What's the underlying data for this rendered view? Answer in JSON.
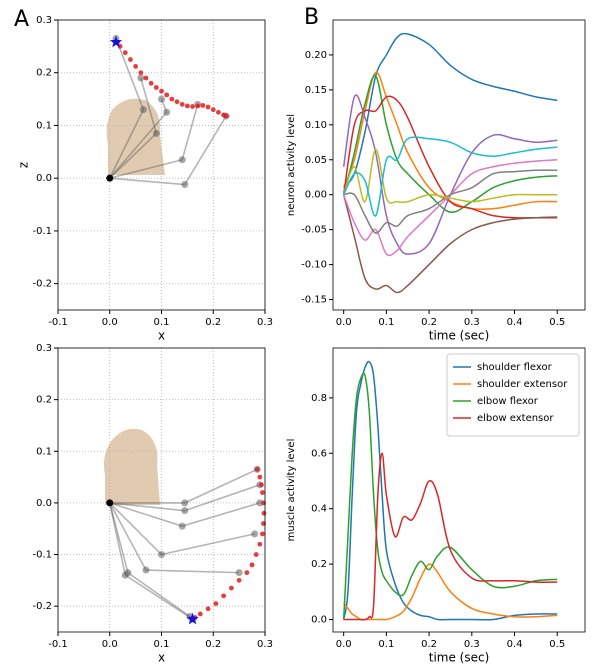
{
  "panel_labels": [
    "A",
    "B"
  ],
  "chart_data": [
    {
      "type": "arm",
      "xlabel": "x",
      "ylabel": "z",
      "grid": true,
      "xlim": [
        -0.1,
        0.3
      ],
      "ylim": [
        -0.25,
        0.3
      ],
      "xticks": [
        -0.1,
        {
          "value": 0,
          "label": "0.0"
        },
        0.1,
        0.2,
        0.3
      ],
      "yticks": [
        -0.2,
        -0.1,
        {
          "value": 0,
          "label": "0.0"
        },
        0.1,
        0.2,
        0.3
      ],
      "shoulder": [
        0,
        0
      ],
      "poses": [
        {
          "elbow": [
            0.065,
            0.13
          ],
          "hand": [
            0.012,
            0.265
          ]
        },
        {
          "elbow": [
            0.09,
            0.085
          ],
          "hand": [
            0.06,
            0.19
          ]
        },
        {
          "elbow": [
            0.14,
            0.035
          ],
          "hand": [
            0.17,
            0.14
          ]
        },
        {
          "elbow": [
            0.145,
            -0.012
          ],
          "hand": [
            0.225,
            0.118
          ]
        },
        {
          "elbow": [
            0.11,
            0.125
          ],
          "hand": [
            0.1,
            0.15
          ]
        }
      ],
      "trajectory": {
        "color": "#e41a1c",
        "x": [
          0.015,
          0.02,
          0.03,
          0.04,
          0.05,
          0.06,
          0.07,
          0.08,
          0.09,
          0.1,
          0.11,
          0.12,
          0.13,
          0.14,
          0.15,
          0.16,
          0.17,
          0.18,
          0.19,
          0.2,
          0.21,
          0.22,
          0.225
        ],
        "z": [
          0.258,
          0.25,
          0.238,
          0.225,
          0.212,
          0.2,
          0.19,
          0.18,
          0.172,
          0.165,
          0.158,
          0.15,
          0.145,
          0.14,
          0.137,
          0.136,
          0.137,
          0.138,
          0.135,
          0.13,
          0.125,
          0.12,
          0.118
        ]
      },
      "target": [
        0.012,
        0.258
      ]
    },
    {
      "type": "arm",
      "xlabel": "x",
      "grid": true,
      "xlim": [
        -0.1,
        0.3
      ],
      "ylim": [
        -0.25,
        0.3
      ],
      "xticks": [
        -0.1,
        {
          "value": 0,
          "label": "0.0"
        },
        0.1,
        0.2,
        0.3
      ],
      "yticks": [
        -0.2,
        -0.1,
        {
          "value": 0,
          "label": "0.0"
        },
        0.1,
        0.2,
        0.3
      ],
      "shoulder": [
        0,
        0
      ],
      "poses": [
        {
          "elbow": [
            0.03,
            -0.14
          ],
          "hand": [
            0.16,
            -0.225
          ]
        },
        {
          "elbow": [
            0.035,
            -0.135
          ],
          "hand": [
            0.155,
            -0.22
          ]
        },
        {
          "elbow": [
            0.07,
            -0.13
          ],
          "hand": [
            0.25,
            -0.135
          ]
        },
        {
          "elbow": [
            0.1,
            -0.1
          ],
          "hand": [
            0.28,
            -0.06
          ]
        },
        {
          "elbow": [
            0.14,
            -0.045
          ],
          "hand": [
            0.29,
            0.0
          ]
        },
        {
          "elbow": [
            0.145,
            -0.015
          ],
          "hand": [
            0.29,
            0.035
          ]
        },
        {
          "elbow": [
            0.145,
            0.0
          ],
          "hand": [
            0.285,
            0.065
          ]
        }
      ],
      "trajectory": {
        "color": "#e41a1c",
        "x": [
          0.285,
          0.29,
          0.293,
          0.295,
          0.297,
          0.298,
          0.297,
          0.295,
          0.29,
          0.283,
          0.275,
          0.265,
          0.25,
          0.235,
          0.22,
          0.205,
          0.19,
          0.175,
          0.165
        ],
        "z": [
          0.065,
          0.05,
          0.035,
          0.02,
          0.0,
          -0.02,
          -0.04,
          -0.06,
          -0.08,
          -0.1,
          -0.12,
          -0.135,
          -0.15,
          -0.165,
          -0.18,
          -0.195,
          -0.205,
          -0.215,
          -0.222
        ]
      },
      "target": [
        0.16,
        -0.225
      ]
    },
    {
      "type": "line",
      "xlabel": "time (sec)",
      "ylabel": "neuron activity level",
      "grid": false,
      "xlim": [
        -0.025,
        0.565
      ],
      "ylim": [
        -0.165,
        0.25
      ],
      "xticks": [
        {
          "value": 0,
          "label": "0.0"
        },
        0.1,
        0.2,
        0.3,
        0.4,
        0.5
      ],
      "yticks": [
        -0.15,
        {
          "value": -0.1,
          "label": "-0.10"
        },
        -0.05,
        {
          "value": 0,
          "label": "0.00"
        },
        0.05,
        {
          "value": 0.1,
          "label": "0.10"
        },
        0.15,
        {
          "value": 0.2,
          "label": "0.20"
        }
      ],
      "x": [
        0,
        0.025,
        0.05,
        0.075,
        0.1,
        0.125,
        0.15,
        0.2,
        0.25,
        0.3,
        0.35,
        0.4,
        0.45,
        0.5
      ],
      "series": [
        {
          "color": "#1f77b4",
          "values": [
            0.01,
            0.03,
            0.09,
            0.17,
            0.2,
            0.225,
            0.23,
            0.215,
            0.185,
            0.165,
            0.155,
            0.148,
            0.14,
            0.135
          ]
        },
        {
          "color": "#ff7f0e",
          "values": [
            0.01,
            0.05,
            0.12,
            0.175,
            0.14,
            0.1,
            0.06,
            0.01,
            -0.01,
            -0.02,
            -0.02,
            -0.015,
            -0.01,
            -0.01
          ]
        },
        {
          "color": "#2ca02c",
          "values": [
            0,
            0.06,
            0.13,
            0.17,
            0.1,
            0.05,
            0.03,
            0,
            -0.025,
            -0.01,
            0.01,
            0.02,
            0.025,
            0.027
          ]
        },
        {
          "color": "#d62728",
          "values": [
            0,
            0.1,
            0.12,
            0.12,
            0.14,
            0.135,
            0.11,
            0.04,
            -0.01,
            -0.02,
            -0.03,
            -0.033,
            -0.033,
            -0.033
          ]
        },
        {
          "color": "#9467bd",
          "values": [
            0.04,
            0.14,
            0.11,
            0.06,
            -0.03,
            -0.07,
            -0.085,
            -0.07,
            0,
            0.06,
            0.085,
            0.08,
            0.075,
            0.078
          ]
        },
        {
          "color": "#8c564b",
          "values": [
            0,
            -0.06,
            -0.12,
            -0.135,
            -0.13,
            -0.14,
            -0.13,
            -0.1,
            -0.07,
            -0.05,
            -0.04,
            -0.035,
            -0.033,
            -0.032
          ]
        },
        {
          "color": "#e377c2",
          "values": [
            0,
            -0.04,
            -0.065,
            -0.05,
            -0.085,
            -0.08,
            -0.06,
            -0.03,
            0,
            0.03,
            0.04,
            0.045,
            0.048,
            0.05
          ]
        },
        {
          "color": "#7f7f7f",
          "values": [
            0,
            0,
            -0.03,
            -0.055,
            -0.04,
            -0.045,
            -0.03,
            -0.02,
            0,
            0.01,
            0.03,
            0.033,
            0.035,
            0.035
          ]
        },
        {
          "color": "#bcbd22",
          "values": [
            0,
            0.04,
            -0.01,
            0.065,
            -0.005,
            -0.01,
            -0.01,
            0,
            -0.005,
            -0.01,
            -0.005,
            0,
            0,
            0
          ]
        },
        {
          "color": "#17becf",
          "values": [
            0,
            0.03,
            0.02,
            -0.03,
            0.05,
            0.05,
            0.08,
            0.08,
            0.075,
            0.06,
            0.055,
            0.06,
            0.065,
            0.068
          ]
        }
      ]
    },
    {
      "type": "line",
      "xlabel": "time (sec)",
      "ylabel": "muscle activity level",
      "grid": false,
      "legend": "upper right",
      "xlim": [
        -0.025,
        0.565
      ],
      "ylim": [
        -0.045,
        0.98
      ],
      "xticks": [
        {
          "value": 0,
          "label": "0.0"
        },
        0.1,
        0.2,
        0.3,
        0.4,
        0.5
      ],
      "yticks": [
        {
          "value": 0,
          "label": "0.0"
        },
        0.2,
        0.4,
        0.6,
        0.8
      ],
      "x": [
        0,
        0.01,
        0.02,
        0.03,
        0.04,
        0.05,
        0.06,
        0.07,
        0.08,
        0.09,
        0.1,
        0.12,
        0.14,
        0.16,
        0.18,
        0.2,
        0.22,
        0.25,
        0.3,
        0.35,
        0.4,
        0.45,
        0.5
      ],
      "series": [
        {
          "name": "shoulder flexor",
          "color": "#1f77b4",
          "values": [
            0,
            0.1,
            0.45,
            0.75,
            0.85,
            0.91,
            0.93,
            0.88,
            0.7,
            0.45,
            0.25,
            0.13,
            0.06,
            0.03,
            0.015,
            0.01,
            0,
            0,
            0,
            0,
            0.015,
            0.02,
            0.02
          ]
        },
        {
          "name": "shoulder extensor",
          "color": "#ff7f0e",
          "values": [
            0.06,
            0.04,
            0.02,
            0.01,
            0,
            0,
            0,
            0,
            0,
            0,
            0,
            0.01,
            0.03,
            0.08,
            0.15,
            0.2,
            0.17,
            0.1,
            0.04,
            0.02,
            0.01,
            0.01,
            0.015
          ]
        },
        {
          "name": "elbow flexor",
          "color": "#2ca02c",
          "values": [
            0,
            0.3,
            0.6,
            0.8,
            0.87,
            0.88,
            0.75,
            0.45,
            0.25,
            0.17,
            0.14,
            0.1,
            0.09,
            0.16,
            0.21,
            0.18,
            0.23,
            0.26,
            0.18,
            0.12,
            0.12,
            0.14,
            0.145
          ]
        },
        {
          "name": "elbow extensor",
          "color": "#d62728",
          "values": [
            0,
            0,
            0,
            0,
            0,
            0,
            0.01,
            0.05,
            0.45,
            0.6,
            0.45,
            0.3,
            0.37,
            0.36,
            0.42,
            0.5,
            0.45,
            0.25,
            0.15,
            0.14,
            0.14,
            0.135,
            0.135
          ]
        }
      ]
    }
  ]
}
